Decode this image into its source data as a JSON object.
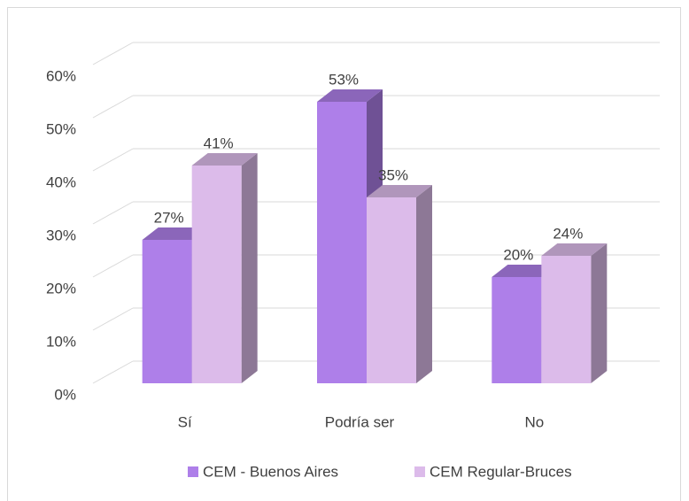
{
  "chart_data": {
    "type": "bar3d",
    "categories": [
      "Sí",
      "Podría ser",
      "No"
    ],
    "series": [
      {
        "name": "CEM - Buenos Aires",
        "color": "#ae7fe9",
        "values": [
          27,
          53,
          20
        ],
        "value_labels": [
          "27%",
          "53%",
          "20%"
        ]
      },
      {
        "name": "CEM Regular-Bruces",
        "color": "#dcbbea",
        "values": [
          41,
          35,
          24
        ],
        "value_labels": [
          "41%",
          "35%",
          "24%"
        ]
      }
    ],
    "ylim": [
      0,
      60
    ],
    "yticks": [
      {
        "value": 0,
        "label": "0%"
      },
      {
        "value": 10,
        "label": "10%"
      },
      {
        "value": 20,
        "label": "20%"
      },
      {
        "value": 30,
        "label": "30%"
      },
      {
        "value": 40,
        "label": "40%"
      },
      {
        "value": 50,
        "label": "50%"
      },
      {
        "value": 60,
        "label": "60%"
      }
    ],
    "grid": true,
    "legend": "bottom"
  }
}
